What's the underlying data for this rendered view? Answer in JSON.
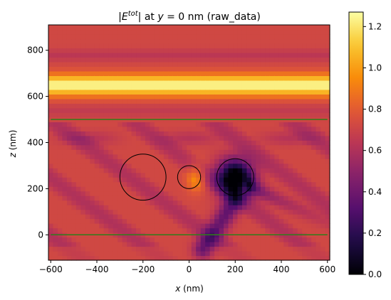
{
  "chart_data": {
    "type": "heatmap",
    "title_parts": {
      "bar_open": "|",
      "var": "E",
      "sup": "tot",
      "bar_close": "|",
      "mid": " at ",
      "ivar": "y",
      "rest": " = 0 nm (raw_data)"
    },
    "xlabel": {
      "var": "x",
      "unit": " (nm)"
    },
    "ylabel": {
      "var": "z",
      "unit": " (nm)"
    },
    "xlim": [
      -610,
      610
    ],
    "ylim": [
      -110,
      910
    ],
    "x_ticks": [
      -600,
      -400,
      -200,
      0,
      200,
      400,
      600
    ],
    "x_tick_labels": [
      "−600",
      "−400",
      "−200",
      "0",
      "200",
      "400",
      "600"
    ],
    "y_ticks": [
      0,
      200,
      400,
      600,
      800
    ],
    "y_tick_labels": [
      "0",
      "200",
      "400",
      "600",
      "800"
    ],
    "colorbar": {
      "range": [
        0.0,
        1.27
      ],
      "ticks": [
        0.0,
        0.2,
        0.4,
        0.6,
        0.8,
        1.0,
        1.2
      ],
      "tick_labels": [
        "0.0",
        "0.2",
        "0.4",
        "0.6",
        "0.8",
        "1.0",
        "1.2"
      ],
      "colormap": "inferno"
    },
    "grid_step": 20,
    "circles": [
      {
        "cx": -200,
        "cz": 250,
        "r": 100
      },
      {
        "cx": 0,
        "cz": 250,
        "r": 50
      },
      {
        "cx": 200,
        "cz": 250,
        "r": 80
      }
    ],
    "horizontal_lines": [
      {
        "z": 500,
        "color": "#2e7d1a"
      },
      {
        "z": 0,
        "color": "#2e7d1a"
      }
    ],
    "field_features": {
      "base_level": 0.72,
      "bright_band": {
        "z_center": 650,
        "peak": 1.25
      },
      "dark_spot": {
        "x": 200,
        "z": 250,
        "min": 0.0
      },
      "dark_streak": {
        "from": [
          200,
          150
        ],
        "to": [
          60,
          -60
        ]
      }
    }
  }
}
